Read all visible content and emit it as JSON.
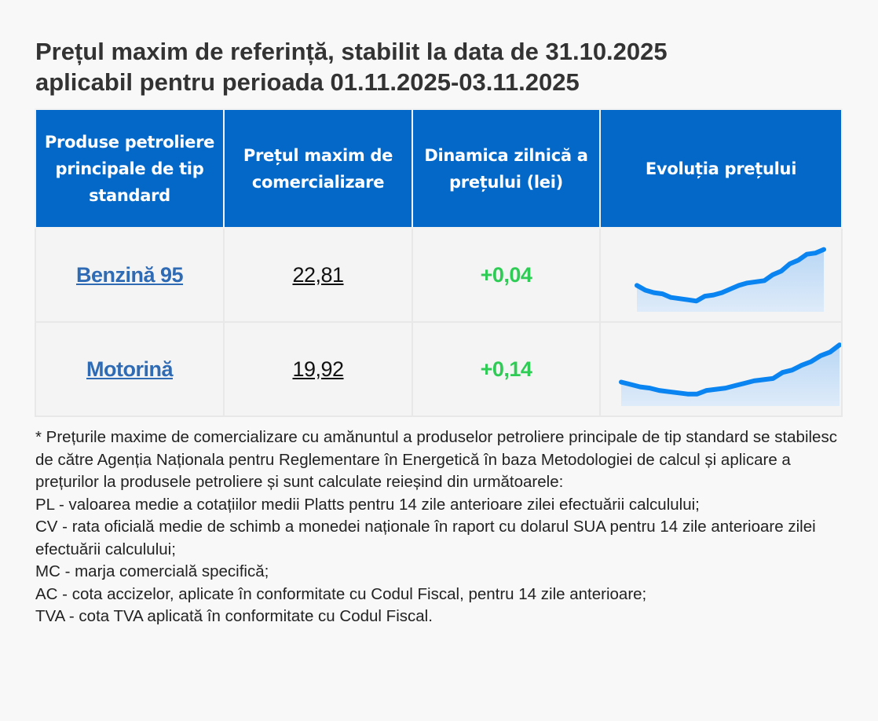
{
  "title": {
    "line1": "Prețul maxim de referință, stabilit la data de 31.10.2025",
    "line2": "aplicabil pentru perioada 01.11.2025-03.11.2025"
  },
  "table": {
    "headers": [
      "Produse petroliere principale de tip standard",
      "Prețul maxim de comercializare",
      "Dinamica zilnică a prețului (lei)",
      "Evoluția prețului"
    ],
    "rows": [
      {
        "product": "Benzină 95",
        "price": "22,81",
        "delta": "+0,04",
        "trend": [
          62,
          58,
          56,
          55,
          52,
          51,
          50,
          49,
          53,
          54,
          56,
          59,
          62,
          64,
          65,
          66,
          71,
          74,
          80,
          83,
          88,
          89,
          92
        ]
      },
      {
        "product": "Motorină",
        "price": "19,92",
        "delta": "+0,14",
        "trend": [
          60,
          58,
          56,
          55,
          53,
          52,
          51,
          50,
          50,
          53,
          54,
          55,
          57,
          59,
          61,
          62,
          63,
          68,
          70,
          74,
          77,
          82,
          85,
          91
        ]
      }
    ]
  },
  "colors": {
    "header_bg": "#0468c9",
    "link": "#2f6bb4",
    "delta_positive": "#2ecc55",
    "spark_line": "#0a84f0",
    "spark_fill": "#b9d7f5"
  },
  "footnote": {
    "intro": "* Prețurile maxime de comercializare cu amănuntul a produselor petroliere principale de tip standard se stabilesc de către Agenția Naționala pentru Reglementare în Energetică în baza Metodologiei de calcul și aplicare a prețurilor la produsele petroliere și sunt calculate reieșind din următoarele:",
    "items": [
      "PL - valoarea medie a cotațiilor medii Platts pentru 14 zile anterioare zilei efectuării calculului;",
      "CV - rata oficială medie de schimb a monedei naționale în raport cu dolarul SUA pentru 14 zile anterioare zilei efectuării calculului;",
      "MC - marja comercială specifică;",
      "AC - cota accizelor, aplicate în conformitate cu Codul Fiscal, pentru 14 zile anterioare;",
      "TVA - cota TVA aplicată în conformitate cu Codul Fiscal."
    ]
  }
}
